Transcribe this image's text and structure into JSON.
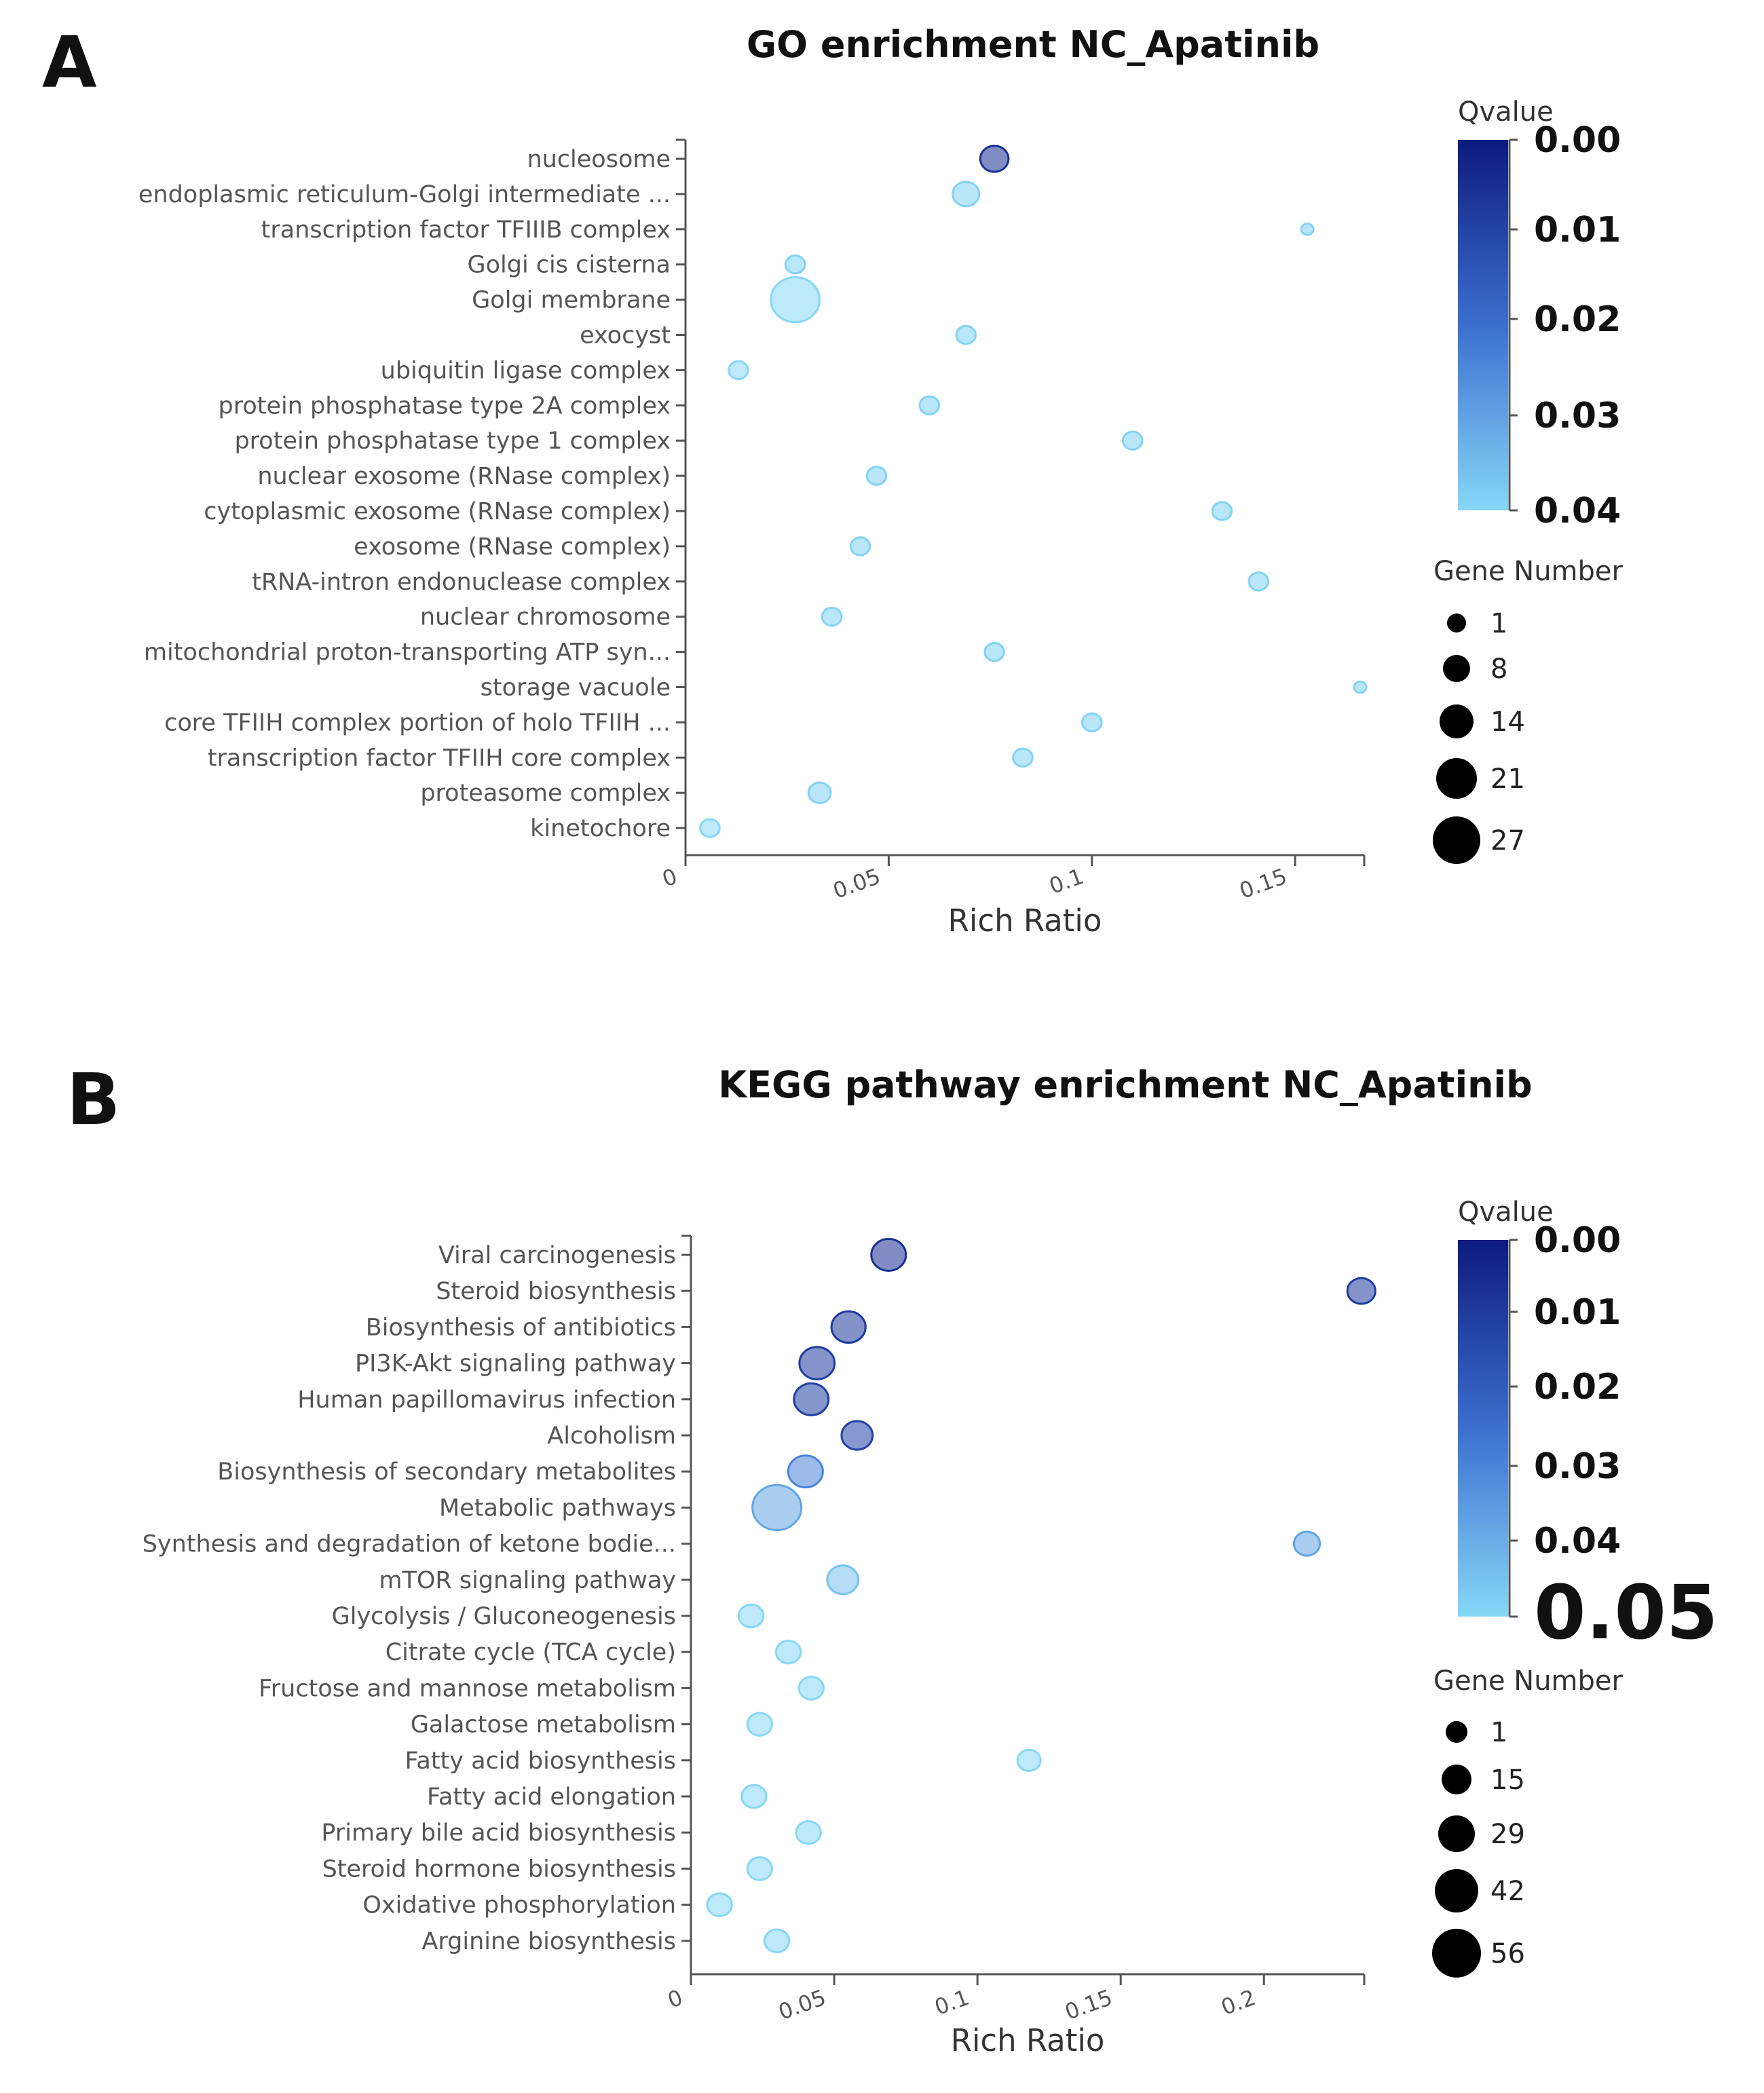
{
  "chart_data": [
    {
      "panel": "A",
      "type": "scatter",
      "title": "GO enrichment  NC_Apatinib",
      "xlabel": "Rich Ratio",
      "ylabel": "",
      "xlim": [
        0,
        0.167
      ],
      "xticks": [
        {
          "value": 0,
          "label": "0"
        },
        {
          "value": 0.05,
          "label": "0.05"
        },
        {
          "value": 0.1,
          "label": "0.1"
        },
        {
          "value": 0.15,
          "label": "0.15"
        }
      ],
      "categories": [
        "nucleosome",
        "endoplasmic reticulum-Golgi intermediate ...",
        "transcription factor TFIIIB complex",
        "Golgi cis cisterna",
        "Golgi membrane",
        "exocyst",
        "ubiquitin ligase complex",
        "protein phosphatase type 2A complex",
        "protein phosphatase type 1 complex",
        "nuclear exosome (RNase complex)",
        "cytoplasmic exosome (RNase complex)",
        "exosome (RNase complex)",
        "tRNA-intron endonuclease complex",
        "nuclear chromosome",
        "mitochondrial proton-transporting ATP syn...",
        "storage vacuole",
        "core TFIIH complex portion of holo TFIIH ...",
        "transcription factor TFIIH core complex",
        "proteasome complex",
        "kinetochore"
      ],
      "rich_ratio": [
        0.076,
        0.069,
        0.153,
        0.027,
        0.027,
        0.069,
        0.013,
        0.06,
        0.11,
        0.047,
        0.132,
        0.043,
        0.141,
        0.036,
        0.076,
        0.166,
        0.1,
        0.083,
        0.033,
        0.006
      ],
      "gene_number": [
        6,
        5,
        1,
        2,
        27,
        2,
        2,
        2,
        2,
        2,
        2,
        2,
        2,
        2,
        2,
        1,
        2,
        2,
        3,
        2
      ],
      "qvalue": [
        0.005,
        0.041,
        0.041,
        0.041,
        0.042,
        0.041,
        0.042,
        0.041,
        0.041,
        0.041,
        0.041,
        0.041,
        0.041,
        0.041,
        0.041,
        0.041,
        0.041,
        0.041,
        0.041,
        0.042
      ],
      "color_legend": {
        "title": "Qvalue",
        "ticks": [
          "0.00",
          "0.01",
          "0.02",
          "0.03",
          "0.04"
        ],
        "range": [
          0,
          0.042
        ],
        "color_low": "#0d1a7e",
        "color_high": "#86d7f7"
      },
      "size_legend": {
        "title": "Gene Number",
        "values": [
          1,
          8,
          14,
          21,
          27
        ],
        "labels": [
          "1",
          "8",
          "14",
          "21",
          "27"
        ]
      }
    },
    {
      "panel": "B",
      "type": "scatter",
      "title": "KEGG pathway enrichment NC_Apatinib",
      "xlabel": "Rich Ratio",
      "ylabel": "",
      "xlim": [
        0,
        0.235
      ],
      "xticks": [
        {
          "value": 0,
          "label": "0"
        },
        {
          "value": 0.05,
          "label": "0.05"
        },
        {
          "value": 0.1,
          "label": "0.1"
        },
        {
          "value": 0.15,
          "label": "0.15"
        },
        {
          "value": 0.2,
          "label": "0.2"
        }
      ],
      "categories": [
        "Viral carcinogenesis",
        "Steroid biosynthesis",
        "Biosynthesis of antibiotics",
        "PI3K-Akt signaling pathway",
        "Human papillomavirus infection",
        "Alcoholism",
        "Biosynthesis of secondary metabolites",
        "Metabolic pathways",
        "Synthesis and degradation of ketone bodie...",
        "mTOR signaling pathway",
        "Glycolysis / Gluconeogenesis",
        "Citrate cycle (TCA cycle)",
        "Fructose and mannose metabolism",
        "Galactose metabolism",
        "Fatty acid biosynthesis",
        "Fatty acid elongation",
        "Primary bile acid biosynthesis",
        "Steroid hormone biosynthesis",
        "Oxidative phosphorylation",
        "Arginine biosynthesis"
      ],
      "rich_ratio": [
        0.069,
        0.234,
        0.055,
        0.044,
        0.042,
        0.058,
        0.04,
        0.03,
        0.215,
        0.053,
        0.021,
        0.034,
        0.042,
        0.024,
        0.118,
        0.022,
        0.041,
        0.024,
        0.01,
        0.03
      ],
      "gene_number": [
        16,
        6,
        15,
        17,
        16,
        10,
        16,
        56,
        4,
        10,
        3,
        3,
        3,
        3,
        2,
        3,
        3,
        3,
        3,
        3
      ],
      "qvalue": [
        0.006,
        0.01,
        0.009,
        0.01,
        0.011,
        0.012,
        0.03,
        0.038,
        0.038,
        0.045,
        0.05,
        0.05,
        0.05,
        0.05,
        0.05,
        0.05,
        0.05,
        0.05,
        0.05,
        0.05
      ],
      "color_legend": {
        "title": "Qvalue",
        "ticks": [
          "0.00",
          "0.01",
          "0.02",
          "0.03",
          "0.04",
          "0.05"
        ],
        "range": [
          0,
          0.05
        ],
        "color_low": "#0d1a7e",
        "color_high": "#86d7f7"
      },
      "size_legend": {
        "title": "Gene Number",
        "values": [
          1,
          15,
          29,
          42,
          56
        ],
        "labels": [
          "1",
          "15",
          "29",
          "42",
          "56"
        ]
      }
    }
  ]
}
